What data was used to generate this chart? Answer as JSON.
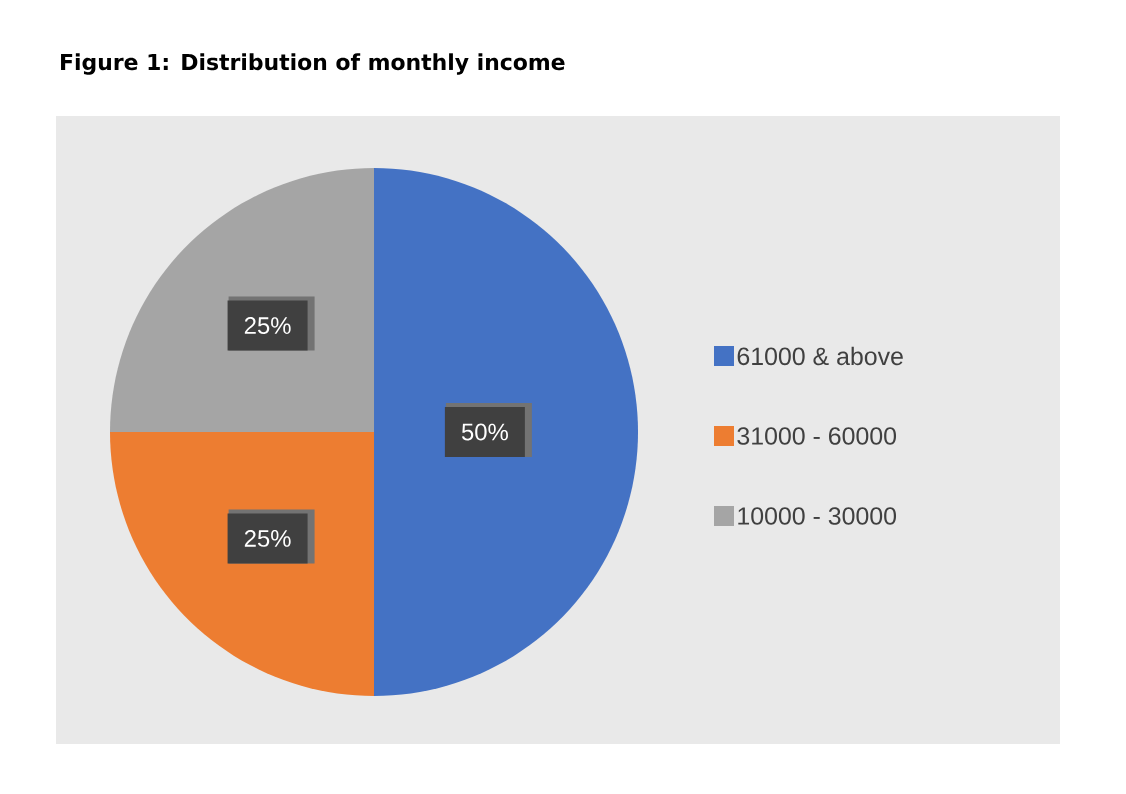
{
  "chart_data": {
    "type": "pie",
    "title": "Figure 1: Distribution of monthly income",
    "categories": [
      "61000 & above",
      "31000 - 60000",
      "10000 - 30000"
    ],
    "values": [
      50,
      25,
      25
    ],
    "value_labels": [
      "50%",
      "25%",
      "25%"
    ],
    "colors": [
      "#4472c4",
      "#ed7d31",
      "#a5a5a5"
    ],
    "legend": "right"
  }
}
